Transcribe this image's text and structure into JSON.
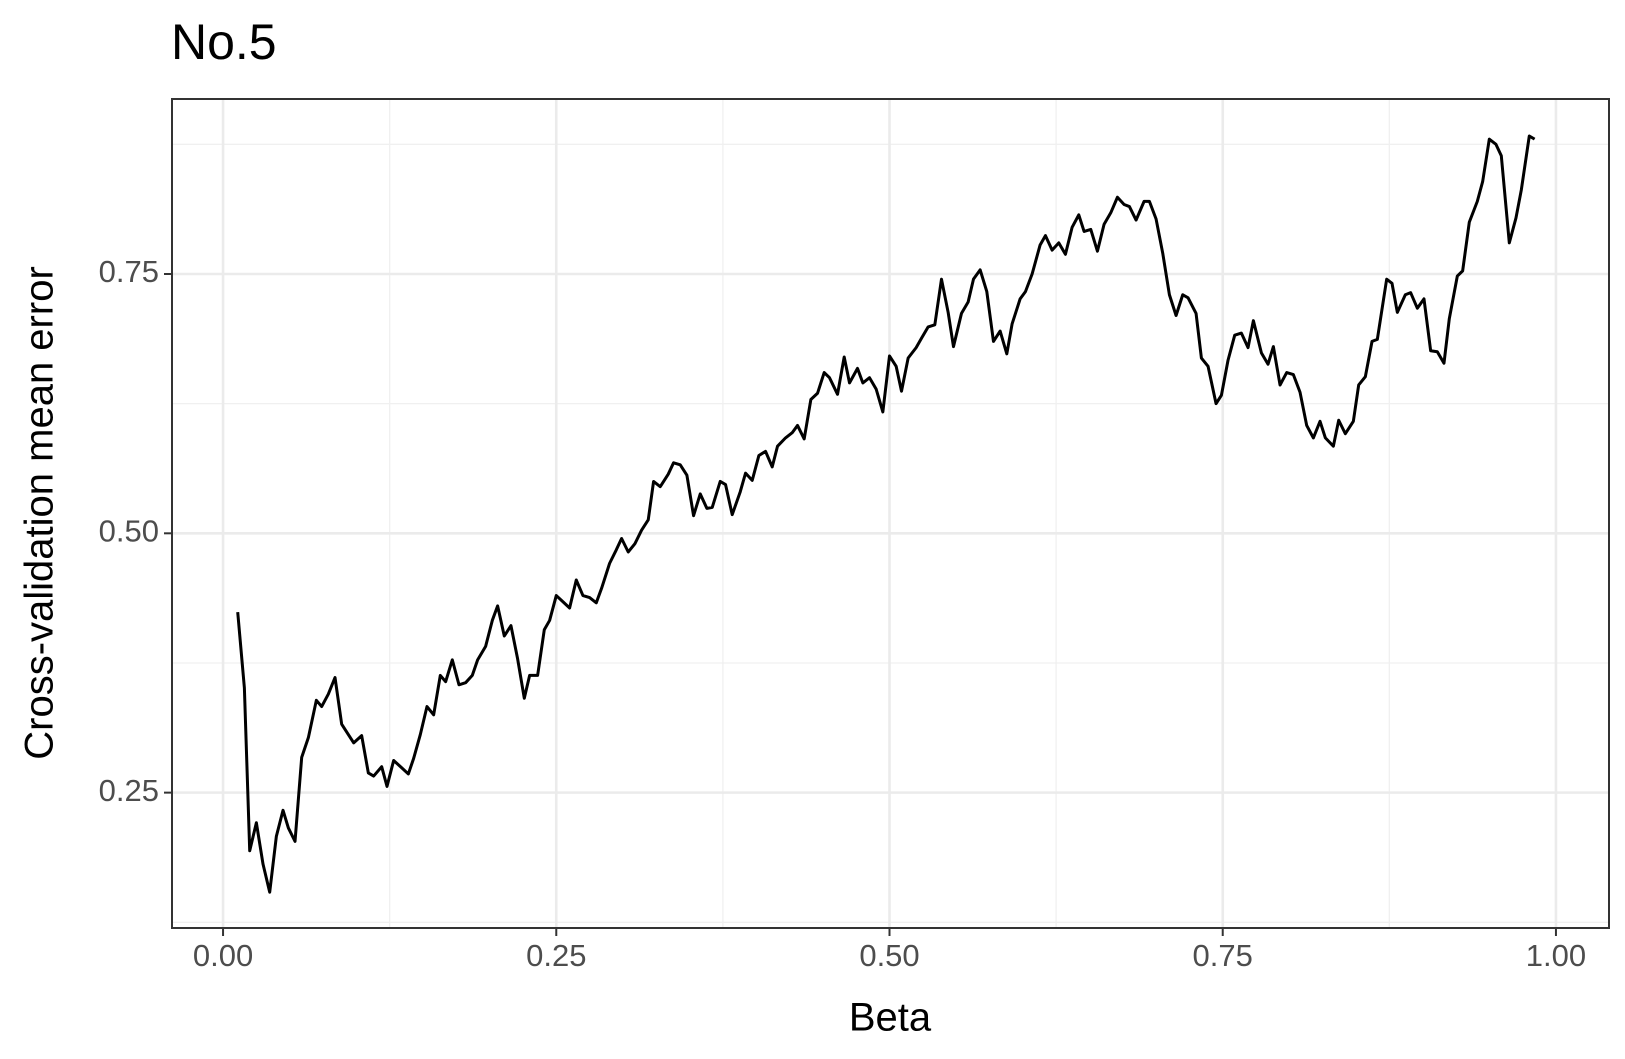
{
  "chart_data": {
    "type": "line",
    "title": "No.5",
    "x_label": "Beta",
    "y_label": "Cross-validation mean error",
    "x": [
      0.011,
      0.016,
      0.02,
      0.025,
      0.03,
      0.035,
      0.04,
      0.045,
      0.049,
      0.054,
      0.059,
      0.064,
      0.07,
      0.074,
      0.079,
      0.084,
      0.089,
      0.094,
      0.098,
      0.104,
      0.109,
      0.113,
      0.119,
      0.123,
      0.128,
      0.134,
      0.139,
      0.143,
      0.148,
      0.153,
      0.158,
      0.163,
      0.167,
      0.172,
      0.177,
      0.182,
      0.187,
      0.191,
      0.197,
      0.202,
      0.206,
      0.211,
      0.216,
      0.221,
      0.226,
      0.23,
      0.236,
      0.241,
      0.245,
      0.25,
      0.255,
      0.26,
      0.265,
      0.27,
      0.275,
      0.28,
      0.284,
      0.29,
      0.295,
      0.299,
      0.304,
      0.309,
      0.314,
      0.319,
      0.323,
      0.328,
      0.334,
      0.338,
      0.343,
      0.348,
      0.353,
      0.358,
      0.363,
      0.367,
      0.373,
      0.377,
      0.382,
      0.388,
      0.392,
      0.397,
      0.402,
      0.407,
      0.412,
      0.416,
      0.422,
      0.427,
      0.431,
      0.436,
      0.441,
      0.446,
      0.451,
      0.455,
      0.461,
      0.466,
      0.47,
      0.476,
      0.48,
      0.485,
      0.49,
      0.495,
      0.5,
      0.505,
      0.509,
      0.514,
      0.52,
      0.524,
      0.529,
      0.534,
      0.539,
      0.544,
      0.548,
      0.554,
      0.559,
      0.563,
      0.568,
      0.573,
      0.578,
      0.583,
      0.588,
      0.592,
      0.598,
      0.602,
      0.607,
      0.613,
      0.617,
      0.622,
      0.627,
      0.632,
      0.637,
      0.642,
      0.646,
      0.651,
      0.656,
      0.661,
      0.666,
      0.671,
      0.676,
      0.68,
      0.685,
      0.691,
      0.695,
      0.7,
      0.705,
      0.71,
      0.715,
      0.72,
      0.724,
      0.73,
      0.734,
      0.739,
      0.745,
      0.749,
      0.754,
      0.759,
      0.764,
      0.769,
      0.773,
      0.779,
      0.784,
      0.788,
      0.793,
      0.798,
      0.803,
      0.808,
      0.813,
      0.818,
      0.823,
      0.827,
      0.833,
      0.837,
      0.842,
      0.848,
      0.852,
      0.857,
      0.862,
      0.866,
      0.873,
      0.877,
      0.881,
      0.887,
      0.891,
      0.896,
      0.901,
      0.906,
      0.911,
      0.916,
      0.92,
      0.926,
      0.93,
      0.935,
      0.941,
      0.945,
      0.95,
      0.955,
      0.959,
      0.965,
      0.97,
      0.974,
      0.98,
      0.984
    ],
    "series": [
      {
        "color": "#000000",
        "values": [
          0.424,
          0.351,
          0.194,
          0.221,
          0.181,
          0.154,
          0.208,
          0.233,
          0.216,
          0.203,
          0.284,
          0.303,
          0.339,
          0.333,
          0.345,
          0.361,
          0.316,
          0.306,
          0.298,
          0.305,
          0.269,
          0.266,
          0.275,
          0.256,
          0.281,
          0.274,
          0.268,
          0.283,
          0.306,
          0.333,
          0.325,
          0.363,
          0.357,
          0.378,
          0.354,
          0.356,
          0.363,
          0.378,
          0.391,
          0.416,
          0.43,
          0.401,
          0.411,
          0.379,
          0.341,
          0.363,
          0.363,
          0.407,
          0.416,
          0.44,
          0.434,
          0.428,
          0.455,
          0.44,
          0.438,
          0.433,
          0.447,
          0.471,
          0.484,
          0.495,
          0.482,
          0.49,
          0.503,
          0.513,
          0.55,
          0.545,
          0.557,
          0.568,
          0.566,
          0.556,
          0.517,
          0.538,
          0.524,
          0.525,
          0.55,
          0.547,
          0.518,
          0.54,
          0.558,
          0.551,
          0.575,
          0.579,
          0.564,
          0.584,
          0.592,
          0.597,
          0.604,
          0.591,
          0.629,
          0.635,
          0.655,
          0.65,
          0.634,
          0.67,
          0.645,
          0.659,
          0.645,
          0.65,
          0.639,
          0.617,
          0.671,
          0.661,
          0.637,
          0.669,
          0.679,
          0.688,
          0.699,
          0.701,
          0.745,
          0.713,
          0.68,
          0.712,
          0.723,
          0.745,
          0.754,
          0.733,
          0.685,
          0.695,
          0.673,
          0.702,
          0.726,
          0.733,
          0.75,
          0.778,
          0.787,
          0.773,
          0.78,
          0.769,
          0.795,
          0.807,
          0.791,
          0.793,
          0.772,
          0.798,
          0.809,
          0.824,
          0.817,
          0.815,
          0.802,
          0.82,
          0.82,
          0.803,
          0.77,
          0.73,
          0.71,
          0.73,
          0.727,
          0.712,
          0.669,
          0.661,
          0.625,
          0.633,
          0.667,
          0.691,
          0.693,
          0.679,
          0.705,
          0.674,
          0.663,
          0.68,
          0.643,
          0.655,
          0.653,
          0.636,
          0.604,
          0.592,
          0.608,
          0.592,
          0.584,
          0.609,
          0.596,
          0.608,
          0.643,
          0.651,
          0.685,
          0.687,
          0.745,
          0.741,
          0.713,
          0.73,
          0.732,
          0.717,
          0.726,
          0.676,
          0.675,
          0.664,
          0.707,
          0.748,
          0.753,
          0.8,
          0.82,
          0.839,
          0.88,
          0.875,
          0.864,
          0.78,
          0.804,
          0.831,
          0.883,
          0.88
        ]
      }
    ],
    "xlim": [
      -0.0383,
      1.0398
    ],
    "ylim": [
      0.1195,
      0.9187
    ],
    "xticks": [
      {
        "value": 0,
        "label": "0.00"
      },
      0.25,
      {
        "value": 0.5,
        "label": "0.50"
      },
      0.75,
      {
        "value": 1,
        "label": "1.00"
      }
    ],
    "yticks": [
      0.25,
      {
        "value": 0.5,
        "label": "0.50"
      },
      0.75
    ],
    "xminor": [
      0.125,
      0.375,
      0.625,
      0.875
    ],
    "yminor": [
      0.125,
      0.375,
      0.625,
      0.875
    ],
    "grid": true
  }
}
